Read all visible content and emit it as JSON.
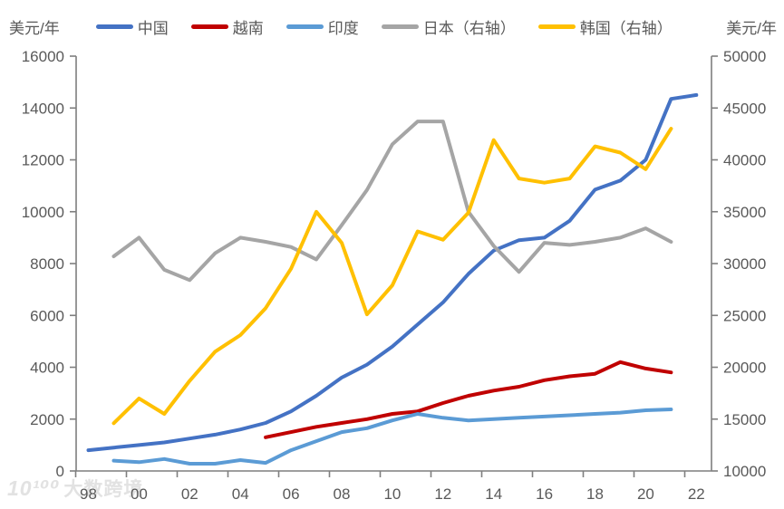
{
  "axes": {
    "left_title": "美元/年",
    "right_title": "美元/年",
    "left_ticks": [
      "0",
      "2000",
      "4000",
      "6000",
      "8000",
      "10000",
      "12000",
      "14000",
      "16000"
    ],
    "right_ticks": [
      "10000",
      "15000",
      "20000",
      "25000",
      "30000",
      "35000",
      "40000",
      "45000",
      "50000"
    ],
    "x_ticks": [
      "98",
      "00",
      "02",
      "04",
      "06",
      "08",
      "10",
      "12",
      "14",
      "16",
      "18",
      "20",
      "22"
    ]
  },
  "watermark": {
    "logo": "10¹⁰⁰",
    "text": "大数跨境"
  },
  "chart_data": {
    "type": "line",
    "unit": "美元/年",
    "title": "",
    "grid": false,
    "legend_position": "top",
    "x_range": [
      1998,
      2022
    ],
    "left_axis": {
      "min": 0,
      "max": 16000,
      "step": 2000
    },
    "right_axis": {
      "min": 10000,
      "max": 50000,
      "step": 5000
    },
    "series": [
      {
        "id": "china",
        "name": "中国",
        "axis": "left",
        "color": "#4472C4",
        "start_year": 1998,
        "values": [
          800,
          900,
          1000,
          1100,
          1250,
          1400,
          1600,
          1850,
          2300,
          2900,
          3600,
          4100,
          4800,
          5650,
          6500,
          7600,
          8500,
          8900,
          9000,
          9650,
          10850,
          11200,
          12000,
          14350,
          14500
        ]
      },
      {
        "id": "vietnam",
        "name": "越南",
        "axis": "left",
        "color": "#C00000",
        "start_year": 2005,
        "values": [
          1300,
          1500,
          1700,
          1850,
          2000,
          2200,
          2300,
          2620,
          2900,
          3100,
          3250,
          3500,
          3650,
          3750,
          4200,
          3950,
          3800
        ]
      },
      {
        "id": "india",
        "name": "印度",
        "axis": "left",
        "color": "#5B9BD5",
        "start_year": 1999,
        "values": [
          400,
          340,
          460,
          280,
          280,
          420,
          310,
          800,
          1150,
          1500,
          1650,
          1950,
          2200,
          2050,
          1950,
          2000,
          2050,
          2100,
          2150,
          2200,
          2250,
          2340,
          2375
        ]
      },
      {
        "id": "japan",
        "name": "日本（右轴）",
        "axis": "right",
        "color": "#A5A5A5",
        "start_year": 1999,
        "values": [
          30700,
          32500,
          29400,
          28400,
          31000,
          32500,
          32100,
          31600,
          30400,
          33700,
          37100,
          41500,
          43700,
          43700,
          35000,
          31700,
          29200,
          32000,
          31800,
          32100,
          32500,
          33400,
          32100
        ]
      },
      {
        "id": "korea",
        "name": "韩国（右轴）",
        "axis": "right",
        "color": "#FFC000",
        "start_year": 1999,
        "values": [
          14600,
          17000,
          15500,
          18700,
          21500,
          23100,
          25700,
          29500,
          35000,
          32000,
          25100,
          27900,
          33100,
          32300,
          34900,
          41900,
          38200,
          37800,
          38200,
          41300,
          40700,
          39100,
          43000
        ]
      }
    ]
  }
}
